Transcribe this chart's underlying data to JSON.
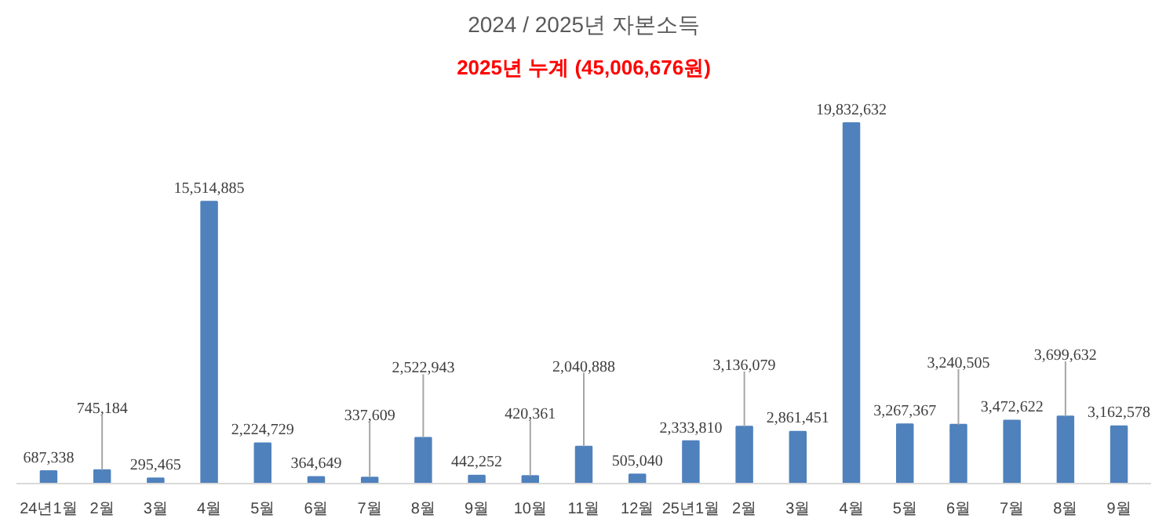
{
  "chart_data": {
    "type": "bar",
    "title": "2024 / 2025년 자본소득",
    "subtitle": "2025년 누계 (45,006,676원)",
    "categories": [
      "24년1월",
      "2월",
      "3월",
      "4월",
      "5월",
      "6월",
      "7월",
      "8월",
      "9월",
      "10월",
      "11월",
      "12월",
      "25년1월",
      "2월",
      "3월",
      "4월",
      "5월",
      "6월",
      "7월",
      "8월",
      "9월"
    ],
    "values": [
      687338,
      745184,
      295465,
      15514885,
      2224729,
      364649,
      337609,
      2522943,
      442252,
      420361,
      2040888,
      505040,
      2333810,
      3136079,
      2861451,
      19832632,
      3267367,
      3240505,
      3472622,
      3699632,
      3162578
    ],
    "value_labels": [
      "687,338",
      "745,184",
      "295,465",
      "15,514,885",
      "2,224,729",
      "364,649",
      "337,609",
      "2,522,943",
      "442,252",
      "420,361",
      "2,040,888",
      "505,040",
      "2,333,810",
      "3,136,079",
      "2,861,451",
      "19,832,632",
      "3,267,367",
      "3,240,505",
      "3,472,622",
      "3,699,632",
      "3,162,578"
    ],
    "color": "#4f81bd",
    "grid": false
  }
}
